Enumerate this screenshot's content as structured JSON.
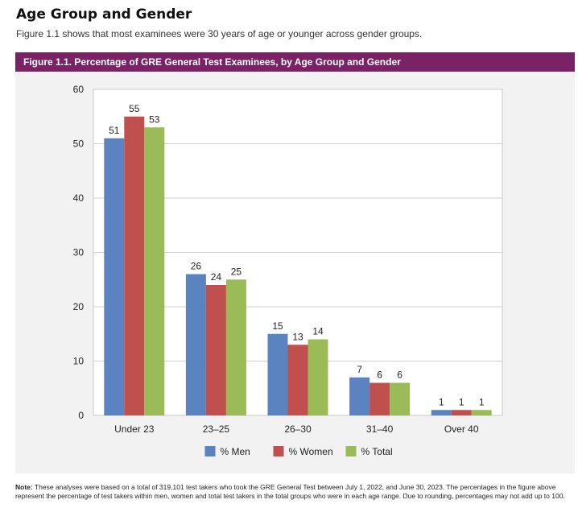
{
  "section": {
    "title": "Age Group and Gender",
    "intro": "Figure 1.1 shows that most examinees were 30 years of age or younger across gender groups."
  },
  "figure": {
    "title": "Figure 1.1. Percentage of GRE General Test Examinees, by Age Group and Gender"
  },
  "note": {
    "label": "Note:",
    "text": "These analyses were based on a total of 319,101 test takers who took the GRE General Test between July 1, 2022, and June 30, 2023. The percentages in the figure above represent the percentage of test takers within men, women and total test takers in the total groups who were in each age range. Due to rounding, percentages may not add up to 100."
  },
  "chart_data": {
    "type": "bar",
    "title": "Figure 1.1. Percentage of GRE General Test Examinees, by Age Group and Gender",
    "xlabel": "",
    "ylabel": "",
    "ylim": [
      0,
      60
    ],
    "yticks": [
      0,
      10,
      20,
      30,
      40,
      50,
      60
    ],
    "grid": true,
    "legend_position": "bottom",
    "categories": [
      "Under 23",
      "23–25",
      "26–30",
      "31–40",
      "Over 40"
    ],
    "series": [
      {
        "name": "% Men",
        "color": "#5b83c0",
        "values": [
          51,
          26,
          15,
          7,
          1
        ]
      },
      {
        "name": "% Women",
        "color": "#c0504d",
        "values": [
          55,
          24,
          13,
          6,
          1
        ]
      },
      {
        "name": "% Total",
        "color": "#9bbb59",
        "values": [
          53,
          25,
          14,
          6,
          1
        ]
      }
    ]
  }
}
